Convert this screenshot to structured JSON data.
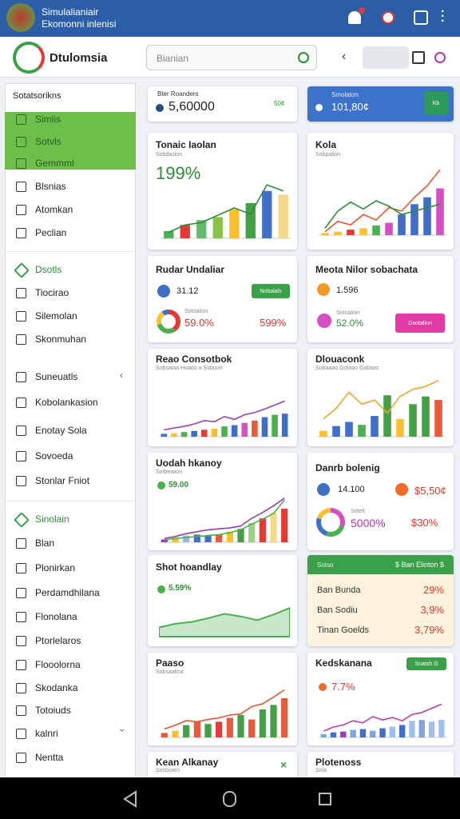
{
  "topbar": {
    "title_line1": "Simulalianiair",
    "title_line2": "Ekomonni inlenisi"
  },
  "header": {
    "brand": "Dtulomsia",
    "search_placeholder": "Bianian"
  },
  "sidebar": {
    "groups": [
      {
        "title": "Sotatsorikns",
        "items": [
          "Simlis",
          "Sotvls",
          "Gemmml",
          "Blsnias",
          "Atomkan",
          "Peclian"
        ]
      },
      {
        "title": "Dsotls",
        "items": [
          "Tiocirao",
          "Silemolan",
          "Skonmuhan",
          "Suneuatls",
          "Kobolankasion",
          "Enotay Sola",
          "Sovoeda",
          "Stonlar Fniot"
        ]
      },
      {
        "title": "Sinolain",
        "items": [
          "Blan",
          "Plonirkan",
          "Perdamdhilana",
          "Flonolana",
          "Ptorlelaros",
          "Flooolorna",
          "Skodanka",
          "Totoiuds",
          "kalnri",
          "Nentta"
        ]
      }
    ]
  },
  "cards": [
    {
      "label": "Bter Roanders",
      "value": "5,60000",
      "badge": "50¢"
    },
    {
      "label": "Smolaton",
      "value": "101,80¢",
      "button": "Kb"
    },
    {
      "title": "Tonaic Iaolan",
      "subtitle": "Sobdasion",
      "value": "199%",
      "chart": {
        "bars": [
          12,
          22,
          30,
          35,
          48,
          58,
          78,
          72
        ],
        "bar_colors": [
          "#4caf50",
          "#e53935",
          "#66bb6a",
          "#8bc34a",
          "#fbc02d",
          "#43a047",
          "#3f6fc6",
          "#f3d98a"
        ],
        "lines": [
          {
            "values": [
              10,
              22,
              26,
              38,
              50,
              40,
              88,
              78
            ],
            "color": "#2e8b3a"
          }
        ]
      }
    },
    {
      "title": "Kola",
      "subtitle": "Sobpalion",
      "chart": {
        "bars": [
          3,
          5,
          8,
          10,
          14,
          18,
          30,
          45,
          55,
          68
        ],
        "bar_colors": [
          "#fbc02d",
          "#fbc02d",
          "#e53935",
          "#fbc02d",
          "#4caf50",
          "#d64fc4",
          "#3f6fc6",
          "#3f6fc6",
          "#3f6fc6",
          "#d64fc4"
        ],
        "lines": [
          {
            "values": [
              5,
              20,
              15,
              30,
              22,
              40,
              35,
              55,
              72,
              95
            ],
            "color": "#e8542f"
          },
          {
            "values": [
              10,
              35,
              48,
              38,
              50,
              42,
              30,
              35,
              40,
              45
            ],
            "color": "#2e8b3a"
          }
        ]
      }
    },
    {
      "title": "Rudar Undaliar",
      "value": "31.12",
      "button": "Nobalals",
      "caption": "Sotnalion",
      "percent": "59.0%",
      "percent2": "599%",
      "donut": {
        "values": [
          40,
          30,
          20,
          10
        ],
        "colors": [
          "#e53935",
          "#4caf50",
          "#f3c33b",
          "#3f6fc6"
        ]
      }
    },
    {
      "title": "Meota Nilor sobachata",
      "value": "1.596",
      "caption": "Sotnalion",
      "percent": "52.0%",
      "button": "Daotalion"
    },
    {
      "title": "Reao Consotbok",
      "subtitle": "Sobsaiaa Hoaoo a Sidaum",
      "chart": {
        "bars": [
          5,
          6,
          8,
          10,
          12,
          14,
          18,
          20,
          24,
          28,
          34,
          38,
          40
        ],
        "bar_colors": [
          "#3f6fc6",
          "#fbc02d",
          "#4caf50",
          "#3f6fc6",
          "#e53935",
          "#fbc02d",
          "#4caf50",
          "#3f6fc6",
          "#d64fc4",
          "#e85a3c",
          "#3f6fc6",
          "#4caf50",
          "#3f6fc6"
        ],
        "lines": [
          {
            "values": [
              12,
              15,
              18,
              22,
              28,
              26,
              35,
              30,
              38,
              42,
              48,
              55,
              62
            ],
            "color": "#9c3fb5"
          }
        ]
      }
    },
    {
      "title": "Dlouaconk",
      "subtitle": "Sobaaao Gotoao Gabaas",
      "chart": {
        "bars": [
          10,
          18,
          25,
          20,
          35,
          70,
          30,
          55,
          68,
          62
        ],
        "bar_colors": [
          "#fbc02d",
          "#3f6fc6",
          "#3f6fc6",
          "#4caf50",
          "#3f6fc6",
          "#43a047",
          "#fbc02d",
          "#43a047",
          "#43a047",
          "#e85a3c"
        ],
        "lines": [
          {
            "values": [
              30,
              48,
              75,
              55,
              62,
              40,
              68,
              80,
              85,
              95
            ],
            "color": "#f0a42c"
          }
        ]
      }
    },
    {
      "title": "Uodah hkanoy",
      "subtitle": "Sotbeaiion",
      "value": "59.00",
      "chart": {
        "bars": [
          6,
          10,
          14,
          16,
          14,
          16,
          22,
          28,
          40,
          50,
          62,
          70
        ],
        "bar_colors": [
          "#9c3fb5",
          "#fbc02d",
          "#9fb5e0",
          "#3f6fc6",
          "#3f6fc6",
          "#e85a3c",
          "#fbc02d",
          "#43a047",
          "#9fd08a",
          "#e53935",
          "#f3d98a",
          "#e53935"
        ],
        "lines": [
          {
            "values": [
              8,
              12,
              18,
              22,
              26,
              28,
              30,
              34,
              50,
              62,
              76,
              92
            ],
            "color": "#8e3fb5"
          },
          {
            "values": [
              5,
              8,
              10,
              12,
              14,
              16,
              20,
              26,
              38,
              48,
              60,
              88
            ],
            "color": "#4caf50"
          }
        ]
      }
    },
    {
      "title": "Danrb bolenig",
      "value": "14.100",
      "value2": "$5,50¢",
      "caption": "Sotelt",
      "percent": "5000%",
      "percent2": "$30%",
      "donut": {
        "values": [
          30,
          25,
          25,
          20
        ],
        "colors": [
          "#d64fc4",
          "#4caf50",
          "#3f6fc6",
          "#fbc02d"
        ]
      }
    },
    {
      "title": "Shot hoandlay",
      "value": "5.59%",
      "chart": {
        "area": [
          25,
          35,
          40,
          50,
          62,
          55,
          45,
          60,
          78
        ],
        "area_color": "#4caf50"
      }
    },
    {
      "header_left": "Sotso",
      "header_right": "$ Ban Elinton $",
      "rows": [
        [
          "Ban Bunda",
          "29%"
        ],
        [
          "Ban Sodiu",
          "3,9%"
        ],
        [
          "Tinan Goelds",
          "3,79%"
        ]
      ]
    },
    {
      "title": "Paaso",
      "subtitle": "Sobsaalina",
      "chart": {
        "bars": [
          8,
          12,
          22,
          28,
          24,
          28,
          35,
          40,
          32,
          50,
          58,
          70
        ],
        "bar_colors": [
          "#e85a3c",
          "#fbc02d",
          "#43a047",
          "#e85a3c",
          "#43a047",
          "#e53935",
          "#e85a3c",
          "#43a047",
          "#e85a3c",
          "#43a047",
          "#43a047",
          "#e85a3c"
        ],
        "lines": [
          {
            "values": [
              15,
              22,
              30,
              28,
              32,
              35,
              40,
              42,
              55,
              60,
              72,
              85
            ],
            "color": "#e8542f"
          }
        ]
      }
    },
    {
      "title": "Kedskanana",
      "button": "Snatsh G",
      "value": "7.7%",
      "chart": {
        "bars": [
          8,
          12,
          14,
          18,
          20,
          16,
          22,
          26,
          30,
          40,
          42,
          38,
          42
        ],
        "bar_colors": [
          "#7fa4e0",
          "#3f6fc6",
          "#9c3fb5",
          "#7fa4e0",
          "#3f6fc6",
          "#7fa4e0",
          "#3f6fc6",
          "#9fc0ee",
          "#3f6fc6",
          "#9fc0ee",
          "#7fa4e0",
          "#9fc0ee",
          "#9fc0ee"
        ],
        "lines": [
          {
            "values": [
              15,
              25,
              30,
              40,
              35,
              50,
              42,
              48,
              40,
              55,
              60,
              70,
              80
            ],
            "color": "#b83da6"
          }
        ]
      }
    },
    {
      "title": "Kean Alkanay",
      "subtitle": "Sosboarn"
    },
    {
      "title": "Plotenoss",
      "subtitle": "Sola"
    }
  ]
}
